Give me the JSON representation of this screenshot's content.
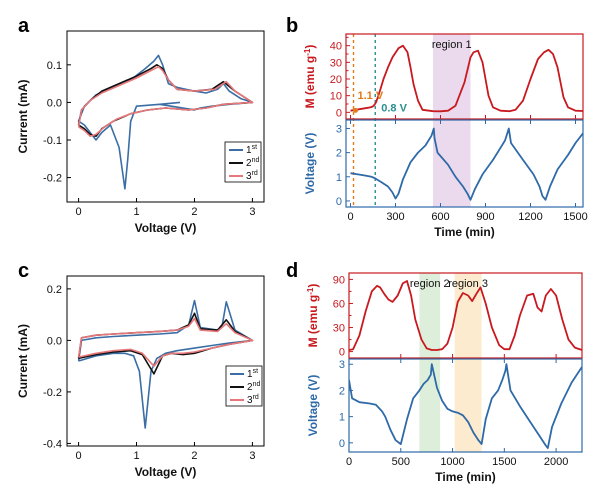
{
  "chart_data": [
    {
      "panel": "a",
      "type": "line",
      "xlabel": "Voltage (V)",
      "ylabel": "Current (mA)",
      "xlim": [
        -0.2,
        3.2
      ],
      "ylim": [
        -0.265,
        0.19
      ],
      "xticks": [
        0,
        1,
        2,
        3
      ],
      "yticks": [
        -0.2,
        -0.1,
        0.0,
        0.1
      ],
      "yticklabels": [
        "-0.2",
        "-0.1",
        "0.0",
        "0.1"
      ],
      "legend": {
        "placement": "bottom-right",
        "labels": [
          {
            "base": "1",
            "sup": "st"
          },
          {
            "base": "2",
            "sup": "nd"
          },
          {
            "base": "3",
            "sup": "rd"
          }
        ]
      },
      "series": [
        {
          "color": "#3a6ea5",
          "x": [
            1.75,
            1.4,
            1.0,
            0.9,
            0.85,
            0.8,
            0.7,
            0.55,
            0.4,
            0.3,
            0.2,
            0.1,
            0.0,
            0.1,
            0.3,
            0.6,
            0.9,
            1.15,
            1.3,
            1.38,
            1.45,
            1.55,
            1.7,
            2.0,
            2.2,
            2.4,
            2.5,
            2.6,
            2.8,
            3.0,
            2.6,
            2.3,
            2.1,
            2.0,
            1.6,
            1.4
          ],
          "y": [
            0.0,
            -0.005,
            -0.01,
            -0.05,
            -0.15,
            -0.23,
            -0.12,
            -0.06,
            -0.08,
            -0.1,
            -0.08,
            -0.06,
            -0.05,
            -0.01,
            0.02,
            0.04,
            0.06,
            0.09,
            0.11,
            0.125,
            0.1,
            0.05,
            0.04,
            0.03,
            0.025,
            0.035,
            0.05,
            0.03,
            0.01,
            0.0,
            -0.005,
            -0.01,
            -0.015,
            -0.02,
            -0.01,
            -0.005
          ]
        },
        {
          "color": "#111111",
          "x": [
            0.0,
            0.1,
            0.2,
            0.3,
            0.4,
            0.6,
            0.9,
            1.2,
            1.5,
            1.9,
            2.2,
            2.5,
            3.0,
            2.7,
            2.5,
            2.3,
            2.0,
            1.7,
            1.55,
            1.45,
            1.35,
            1.25,
            1.0,
            0.7,
            0.4,
            0.2,
            0.05,
            0.0
          ],
          "y": [
            -0.06,
            -0.07,
            -0.085,
            -0.09,
            -0.07,
            -0.05,
            -0.03,
            -0.02,
            -0.015,
            -0.02,
            -0.015,
            -0.005,
            0.0,
            0.03,
            0.055,
            0.035,
            0.03,
            0.035,
            0.06,
            0.09,
            0.1,
            0.09,
            0.07,
            0.05,
            0.03,
            0.005,
            -0.02,
            -0.06
          ]
        },
        {
          "color": "#e8777a",
          "x": [
            0.0,
            0.1,
            0.2,
            0.3,
            0.45,
            0.65,
            0.9,
            1.2,
            1.5,
            1.9,
            2.2,
            2.5,
            3.0,
            2.7,
            2.55,
            2.35,
            2.0,
            1.7,
            1.55,
            1.45,
            1.38,
            1.25,
            1.0,
            0.7,
            0.4,
            0.2,
            0.05,
            0.0
          ],
          "y": [
            -0.065,
            -0.075,
            -0.09,
            -0.085,
            -0.065,
            -0.045,
            -0.03,
            -0.02,
            -0.015,
            -0.02,
            -0.015,
            -0.005,
            0.0,
            0.03,
            0.055,
            0.035,
            0.03,
            0.035,
            0.06,
            0.085,
            0.095,
            0.085,
            0.065,
            0.045,
            0.025,
            0.005,
            -0.02,
            -0.065
          ]
        }
      ]
    },
    {
      "panel": "b",
      "type": "line",
      "xlabel": "Time (min)",
      "x_range": [
        -30,
        1550
      ],
      "xticks": [
        0,
        300,
        600,
        900,
        1200,
        1500
      ],
      "top": {
        "ylabel": "M (emu g",
        "ylabel_sup": "-1",
        "ylabel_tail": ")",
        "ylim": [
          -4,
          47
        ],
        "yticks": [
          0,
          5,
          10,
          15,
          20,
          25,
          30,
          35,
          40,
          45
        ],
        "yticklabels": [
          "0",
          "",
          "10",
          "",
          "20",
          "",
          "30",
          "",
          "40",
          ""
        ],
        "color": "#c8191f",
        "x": [
          0,
          20,
          40,
          60,
          80,
          100,
          120,
          140,
          150,
          160,
          170,
          180,
          200,
          220,
          250,
          280,
          320,
          350,
          380,
          400,
          420,
          450,
          480,
          550,
          600,
          650,
          700,
          760,
          800,
          820,
          850,
          880,
          900,
          920,
          950,
          1000,
          1060,
          1100,
          1150,
          1200,
          1250,
          1290,
          1320,
          1350,
          1380,
          1400,
          1420,
          1450,
          1500,
          1550
        ],
        "y": [
          1.0,
          1.3,
          1.6,
          1.9,
          2.2,
          2.5,
          2.8,
          3.2,
          3.6,
          4.5,
          6.0,
          8.5,
          14,
          20,
          27,
          33,
          38.5,
          40,
          36,
          27,
          17,
          7,
          1.5,
          0.7,
          0.6,
          1,
          4,
          18,
          33,
          36,
          37,
          30,
          20,
          10,
          3,
          1,
          0.7,
          1.5,
          7,
          20,
          32,
          36,
          37.5,
          35,
          27,
          18,
          9,
          3,
          1,
          0.8
        ],
        "regions": [
          {
            "label": "region 1",
            "x": [
              550,
              800
            ],
            "color": "#e7d3ea"
          }
        ],
        "markers": [
          {
            "x": 20,
            "label": "1.1 V",
            "color": "#e07b1a"
          },
          {
            "x": 165,
            "label": "0.8 V",
            "color": "#2a8f8f"
          }
        ]
      },
      "bottom": {
        "ylabel": "Voltage (V)",
        "ylim": [
          -0.25,
          3.35
        ],
        "yticks": [
          0,
          1,
          2,
          3
        ],
        "color": "#2f6aa8",
        "x": [
          0,
          50,
          100,
          140,
          160,
          200,
          250,
          280,
          300,
          320,
          350,
          400,
          450,
          500,
          540,
          555,
          560,
          580,
          650,
          700,
          750,
          780,
          800,
          830,
          880,
          950,
          1000,
          1030,
          1045,
          1055,
          1070,
          1150,
          1220,
          1260,
          1280,
          1300,
          1330,
          1380,
          1450,
          1500,
          1550
        ],
        "y": [
          1.15,
          1.1,
          1.05,
          1.0,
          0.95,
          0.8,
          0.6,
          0.35,
          0.1,
          0.3,
          0.9,
          1.6,
          2.0,
          2.3,
          2.7,
          3.0,
          2.6,
          2.0,
          1.5,
          1.0,
          0.6,
          0.3,
          0.05,
          0.5,
          1.1,
          1.7,
          2.2,
          2.5,
          2.8,
          3.0,
          2.4,
          1.7,
          1.1,
          0.6,
          0.2,
          0.05,
          0.6,
          1.3,
          1.9,
          2.4,
          2.8
        ]
      }
    },
    {
      "panel": "c",
      "type": "line",
      "xlabel": "Voltage (V)",
      "ylabel": "Current (mA)",
      "xlim": [
        -0.2,
        3.2
      ],
      "ylim": [
        -0.41,
        0.25
      ],
      "xticks": [
        0,
        1,
        2,
        3
      ],
      "yticks": [
        -0.4,
        -0.2,
        0.0,
        0.2
      ],
      "yticklabels": [
        "-0.4",
        "-0.2",
        "0.0",
        "0.2"
      ],
      "legend": {
        "placement": "bottom-right",
        "labels": [
          {
            "base": "1",
            "sup": "st"
          },
          {
            "base": "2",
            "sup": "nd"
          },
          {
            "base": "3",
            "sup": "rd"
          }
        ]
      },
      "series": [
        {
          "color": "#3a6ea5",
          "x": [
            0.0,
            0.3,
            0.6,
            0.8,
            0.95,
            1.05,
            1.15,
            1.25,
            1.35,
            1.5,
            1.7,
            2.0,
            2.3,
            2.6,
            3.0,
            2.7,
            2.55,
            2.48,
            2.4,
            2.1,
            2.0,
            1.9,
            1.7,
            1.4,
            1.0,
            0.6,
            0.3,
            0.05,
            0.0
          ],
          "y": [
            -0.08,
            -0.06,
            -0.05,
            -0.05,
            -0.06,
            -0.12,
            -0.34,
            -0.12,
            -0.07,
            -0.05,
            -0.04,
            -0.03,
            -0.02,
            -0.01,
            0.0,
            0.04,
            0.15,
            0.06,
            0.04,
            0.05,
            0.155,
            0.06,
            0.03,
            0.025,
            0.02,
            0.015,
            0.01,
            0.0,
            -0.08
          ]
        },
        {
          "color": "#111111",
          "x": [
            0.0,
            0.3,
            0.6,
            0.9,
            1.1,
            1.3,
            1.45,
            1.6,
            1.8,
            2.0,
            2.3,
            2.6,
            3.0,
            2.7,
            2.55,
            2.4,
            2.1,
            2.0,
            1.9,
            1.7,
            1.4,
            1.0,
            0.6,
            0.3,
            0.05,
            0.0
          ],
          "y": [
            -0.07,
            -0.055,
            -0.045,
            -0.04,
            -0.055,
            -0.13,
            -0.06,
            -0.05,
            -0.055,
            -0.05,
            -0.03,
            -0.015,
            0.0,
            0.035,
            0.08,
            0.04,
            0.045,
            0.105,
            0.06,
            0.04,
            0.035,
            0.03,
            0.025,
            0.02,
            0.01,
            -0.07
          ]
        },
        {
          "color": "#e8777a",
          "x": [
            0.0,
            0.3,
            0.6,
            0.9,
            1.1,
            1.3,
            1.45,
            1.6,
            1.8,
            2.0,
            2.3,
            2.6,
            3.0,
            2.7,
            2.55,
            2.4,
            2.1,
            2.0,
            1.9,
            1.7,
            1.4,
            1.0,
            0.6,
            0.3,
            0.05,
            0.0
          ],
          "y": [
            -0.065,
            -0.05,
            -0.04,
            -0.035,
            -0.05,
            -0.1,
            -0.06,
            -0.05,
            -0.05,
            -0.045,
            -0.03,
            -0.015,
            0.0,
            0.03,
            0.065,
            0.035,
            0.04,
            0.085,
            0.055,
            0.04,
            0.035,
            0.03,
            0.025,
            0.02,
            0.01,
            -0.065
          ]
        }
      ]
    },
    {
      "panel": "d",
      "type": "line",
      "xlabel": "Time (min)",
      "x_range": [
        0,
        2250
      ],
      "xticks": [
        0,
        500,
        1000,
        1500,
        2000
      ],
      "top": {
        "ylabel": "M (emu g",
        "ylabel_sup": "-1",
        "ylabel_tail": ")",
        "ylim": [
          -8,
          98
        ],
        "yticks": [
          0,
          15,
          30,
          45,
          60,
          75,
          90
        ],
        "yticklabels": [
          "0",
          "",
          "30",
          "",
          "60",
          "",
          "90"
        ],
        "color": "#c8191f",
        "x": [
          0,
          40,
          100,
          160,
          220,
          270,
          300,
          340,
          380,
          420,
          470,
          520,
          560,
          600,
          640,
          700,
          750,
          800,
          850,
          900,
          950,
          1000,
          1050,
          1100,
          1150,
          1190,
          1230,
          1270,
          1320,
          1380,
          1450,
          1500,
          1550,
          1600,
          1650,
          1720,
          1780,
          1820,
          1860,
          1900,
          1950,
          2000,
          2060,
          2120,
          2180,
          2250
        ],
        "y": [
          2,
          3,
          20,
          50,
          75,
          82,
          80,
          72,
          65,
          62,
          70,
          85,
          88,
          70,
          40,
          15,
          4,
          2,
          2,
          3,
          10,
          30,
          62,
          73,
          70,
          63,
          72,
          80,
          60,
          30,
          8,
          3,
          3,
          20,
          45,
          70,
          72,
          55,
          50,
          70,
          78,
          70,
          40,
          15,
          5,
          2
        ],
        "regions": [
          {
            "label": "region 2",
            "x": [
              680,
              880
            ],
            "color": "#d7ecd4"
          },
          {
            "label": "region 3",
            "x": [
              1020,
              1280
            ],
            "color": "#fbe7c6"
          }
        ]
      },
      "bottom": {
        "ylabel": "Voltage (V)",
        "ylim": [
          -0.35,
          3.2
        ],
        "yticks": [
          0,
          1,
          2,
          3
        ],
        "color": "#2f6aa8",
        "x": [
          0,
          30,
          100,
          200,
          260,
          320,
          350,
          400,
          450,
          500,
          560,
          620,
          680,
          720,
          760,
          790,
          800,
          850,
          900,
          950,
          1000,
          1050,
          1100,
          1150,
          1200,
          1250,
          1280,
          1320,
          1380,
          1440,
          1480,
          1510,
          1520,
          1560,
          1650,
          1750,
          1850,
          1900,
          1920,
          1960,
          2050,
          2150,
          2250
        ],
        "y": [
          2.4,
          1.7,
          1.55,
          1.5,
          1.45,
          1.2,
          1.0,
          0.5,
          0.1,
          -0.05,
          0.9,
          1.7,
          2.0,
          2.25,
          2.4,
          2.6,
          3.0,
          2.1,
          1.6,
          1.3,
          1.2,
          1.15,
          1.05,
          0.8,
          0.4,
          0.1,
          -0.05,
          0.9,
          1.7,
          2.0,
          2.4,
          2.75,
          3.0,
          2.0,
          1.4,
          0.8,
          0.2,
          -0.1,
          -0.2,
          0.6,
          1.5,
          2.3,
          2.9
        ]
      }
    }
  ],
  "labels": {
    "a": "a",
    "b": "b",
    "c": "c",
    "d": "d"
  }
}
